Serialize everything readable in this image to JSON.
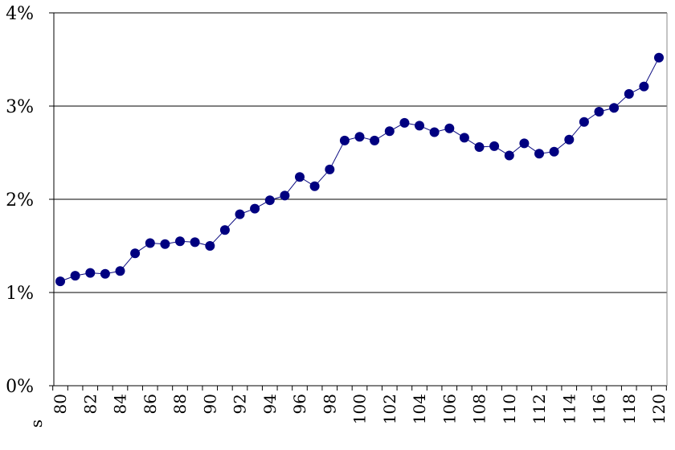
{
  "chart_data": {
    "type": "line",
    "title": "",
    "xlabel": "s",
    "ylabel": "",
    "x": [
      80,
      81,
      82,
      83,
      84,
      85,
      86,
      87,
      88,
      89,
      90,
      91,
      92,
      93,
      94,
      95,
      96,
      97,
      98,
      99,
      100,
      101,
      102,
      103,
      104,
      105,
      106,
      107,
      108,
      109,
      110,
      111,
      112,
      113,
      114,
      115,
      116,
      117,
      118,
      119,
      120
    ],
    "values": [
      1.12,
      1.18,
      1.21,
      1.2,
      1.23,
      1.42,
      1.53,
      1.52,
      1.55,
      1.54,
      1.5,
      1.67,
      1.84,
      1.9,
      1.99,
      2.04,
      2.24,
      2.14,
      2.32,
      2.63,
      2.67,
      2.63,
      2.73,
      2.82,
      2.79,
      2.72,
      2.76,
      2.66,
      2.56,
      2.57,
      2.47,
      2.6,
      2.49,
      2.51,
      2.64,
      2.83,
      2.94,
      2.98,
      3.13,
      3.21,
      3.52
    ],
    "ylim": [
      0,
      4
    ],
    "xlim": [
      80,
      120
    ],
    "y_ticks": [
      "0%",
      "1%",
      "2%",
      "3%",
      "4%"
    ],
    "x_tick_values": [
      80,
      82,
      84,
      86,
      88,
      90,
      92,
      94,
      96,
      98,
      100,
      102,
      104,
      106,
      108,
      110,
      112,
      114,
      116,
      118,
      120
    ],
    "grid": true,
    "legend": "none",
    "colors": {
      "line": "#0b0b80",
      "marker": "#000080",
      "grid": "#000000",
      "axis": "#000000"
    }
  }
}
